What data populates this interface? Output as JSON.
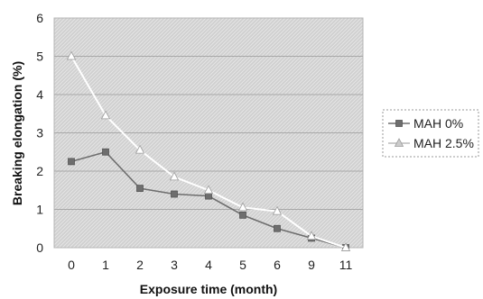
{
  "chart_data": {
    "type": "line",
    "title": "",
    "xlabel": "Exposure time (month)",
    "ylabel": "Breaking elongation (%)",
    "categories": [
      "0",
      "1",
      "2",
      "3",
      "4",
      "5",
      "6",
      "9",
      "11"
    ],
    "ylim": [
      0,
      6
    ],
    "yticks": [
      "0",
      "1",
      "2",
      "3",
      "4",
      "5",
      "6"
    ],
    "grid": true,
    "legend_position": "right",
    "series": [
      {
        "name": "MAH 0%",
        "marker": "square",
        "color": "#6e6e6e",
        "values": [
          2.25,
          2.5,
          1.55,
          1.4,
          1.35,
          0.85,
          0.5,
          0.25,
          0.0
        ]
      },
      {
        "name": "MAH 2.5%",
        "marker": "triangle",
        "color": "#ffffff",
        "values": [
          5.0,
          3.45,
          2.55,
          1.85,
          1.5,
          1.05,
          0.95,
          0.3,
          0.0
        ]
      }
    ]
  }
}
